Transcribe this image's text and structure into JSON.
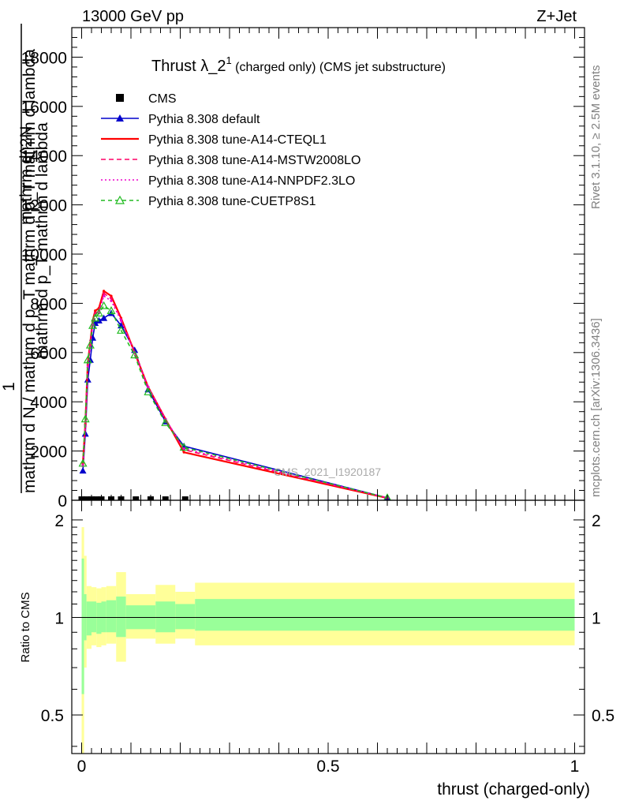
{
  "header": {
    "left": "13000 GeV pp",
    "right": "Z+Jet"
  },
  "plot_title": {
    "main": "Thrust λ_2",
    "sup": "1",
    "small": " (charged only) (CMS jet substructure)"
  },
  "side_labels": {
    "rivet": "Rivet 3.1.10, ≥ 2.5M events",
    "mcplots": "mcplots.cern.ch [arXiv:1306.3436]"
  },
  "watermark": "CMS_2021_I1920187",
  "colors": {
    "cms": "#000000",
    "default": "#0000cc",
    "cteql1": "#ff0000",
    "mstw": "#ff0066",
    "nnpdf": "#ee00cc",
    "cuetp8s1": "#22bb22",
    "band_inner": "#99ff99",
    "band_outer": "#ffff99"
  },
  "chart_data": [
    {
      "type": "line",
      "ylabel_fraction": {
        "numerator": "1",
        "denominator": "mathrm d N / mathrm d p_T mathrm d p_T mathrm d lambda",
        "top_numerator": "mathrm d^2N",
        "top_denominator": "mathrm d p_T mathrm d lambda"
      },
      "xlim": [
        -0.02,
        1.02
      ],
      "ylim": [
        0,
        19200
      ],
      "yticks": [
        {
          "v": 0,
          "label": "0"
        },
        {
          "v": 2000,
          "label": "2000"
        },
        {
          "v": 4000,
          "label": "4000"
        },
        {
          "v": 6000,
          "label": "6000"
        },
        {
          "v": 8000,
          "label": "8000"
        },
        {
          "v": 10000,
          "label": "10000"
        },
        {
          "v": 12000,
          "label": "12000"
        },
        {
          "v": 14000,
          "label": "14000"
        },
        {
          "v": 16000,
          "label": "16000"
        },
        {
          "v": 18000,
          "label": "18000"
        }
      ],
      "series": [
        {
          "name": "CMS",
          "key": "cms",
          "marker": "square",
          "x": [
            0.0,
            0.01,
            0.02,
            0.03,
            0.04,
            0.06,
            0.08,
            0.11,
            0.14,
            0.17,
            0.21
          ],
          "y": [
            30,
            30,
            30,
            30,
            30,
            30,
            30,
            30,
            30,
            30,
            30
          ]
        },
        {
          "name": "Pythia 8.308 default",
          "key": "default",
          "marker": "triangle-filled",
          "dash": "",
          "x": [
            0.0025,
            0.0075,
            0.0125,
            0.0175,
            0.0225,
            0.0275,
            0.035,
            0.045,
            0.06,
            0.08,
            0.1075,
            0.135,
            0.17,
            0.2075,
            0.62
          ],
          "y": [
            1200,
            2700,
            4900,
            5700,
            6600,
            7200,
            7300,
            7400,
            7600,
            7100,
            6100,
            4500,
            3200,
            2200,
            100
          ]
        },
        {
          "name": "Pythia 8.308 tune-A14-CTEQL1",
          "key": "cteql1",
          "marker": "none",
          "dash": "",
          "x": [
            0.0025,
            0.0075,
            0.0125,
            0.0175,
            0.0225,
            0.0275,
            0.035,
            0.045,
            0.06,
            0.08,
            0.1075,
            0.135,
            0.17,
            0.2075,
            0.62
          ],
          "y": [
            1500,
            3100,
            5600,
            6400,
            7300,
            7700,
            7800,
            8500,
            8300,
            7400,
            6000,
            4600,
            3300,
            1950,
            90
          ]
        },
        {
          "name": "Pythia 8.308 tune-A14-MSTW2008LO",
          "key": "mstw",
          "marker": "none",
          "dash": "6,4",
          "x": [
            0.0025,
            0.0075,
            0.0125,
            0.0175,
            0.0225,
            0.0275,
            0.035,
            0.045,
            0.06,
            0.08,
            0.1075,
            0.135,
            0.17,
            0.2075,
            0.62
          ],
          "y": [
            1450,
            3050,
            5500,
            6300,
            7200,
            7600,
            7700,
            8400,
            8200,
            7350,
            6000,
            4600,
            3300,
            2050,
            100
          ]
        },
        {
          "name": "Pythia 8.308 tune-A14-NNPDF2.3LO",
          "key": "nnpdf",
          "marker": "none",
          "dash": "2,3",
          "x": [
            0.0025,
            0.0075,
            0.0125,
            0.0175,
            0.0225,
            0.0275,
            0.035,
            0.045,
            0.06,
            0.08,
            0.1075,
            0.135,
            0.17,
            0.2075,
            0.62
          ],
          "y": [
            1400,
            3000,
            5400,
            6200,
            7100,
            7500,
            7600,
            8300,
            8100,
            7300,
            6000,
            4600,
            3300,
            2100,
            100
          ]
        },
        {
          "name": "Pythia 8.308 tune-CUETP8S1",
          "key": "cuetp8s1",
          "marker": "triangle-open",
          "dash": "5,4",
          "x": [
            0.0025,
            0.0075,
            0.0125,
            0.0175,
            0.0225,
            0.0275,
            0.035,
            0.045,
            0.06,
            0.08,
            0.1075,
            0.135,
            0.17,
            0.2075,
            0.62
          ],
          "y": [
            1500,
            3300,
            5700,
            6300,
            7100,
            7400,
            7600,
            7900,
            7700,
            6900,
            5900,
            4400,
            3150,
            2150,
            100
          ]
        }
      ]
    },
    {
      "type": "area",
      "ylabel": "Ratio to CMS",
      "xlabel": "thrust (charged-only)",
      "xlim": [
        -0.02,
        1.02
      ],
      "ylim": [
        0.38,
        2.3
      ],
      "ylog": true,
      "yticks": [
        {
          "v": 0.5,
          "label": "0.5"
        },
        {
          "v": 1,
          "label": "1"
        },
        {
          "v": 2,
          "label": "2"
        }
      ],
      "xticks": [
        {
          "v": 0,
          "label": "0"
        },
        {
          "v": 0.5,
          "label": "0.5"
        },
        {
          "v": 1,
          "label": "1"
        }
      ],
      "bins": [
        {
          "lo": 0.0,
          "hi": 0.005,
          "outer": [
            0.35,
            1.9
          ],
          "inner": [
            0.58,
            1.52
          ]
        },
        {
          "lo": 0.005,
          "hi": 0.01,
          "outer": [
            0.7,
            1.55
          ],
          "inner": [
            0.85,
            1.18
          ]
        },
        {
          "lo": 0.01,
          "hi": 0.02,
          "outer": [
            0.8,
            1.25
          ],
          "inner": [
            0.88,
            1.12
          ]
        },
        {
          "lo": 0.02,
          "hi": 0.03,
          "outer": [
            0.82,
            1.24
          ],
          "inner": [
            0.9,
            1.12
          ]
        },
        {
          "lo": 0.03,
          "hi": 0.04,
          "outer": [
            0.81,
            1.23
          ],
          "inner": [
            0.89,
            1.11
          ]
        },
        {
          "lo": 0.04,
          "hi": 0.05,
          "outer": [
            0.82,
            1.24
          ],
          "inner": [
            0.9,
            1.12
          ]
        },
        {
          "lo": 0.05,
          "hi": 0.07,
          "outer": [
            0.83,
            1.25
          ],
          "inner": [
            0.9,
            1.13
          ]
        },
        {
          "lo": 0.07,
          "hi": 0.09,
          "outer": [
            0.73,
            1.38
          ],
          "inner": [
            0.87,
            1.16
          ]
        },
        {
          "lo": 0.09,
          "hi": 0.15,
          "outer": [
            0.86,
            1.18
          ],
          "inner": [
            0.92,
            1.09
          ]
        },
        {
          "lo": 0.15,
          "hi": 0.19,
          "outer": [
            0.83,
            1.26
          ],
          "inner": [
            0.9,
            1.12
          ]
        },
        {
          "lo": 0.19,
          "hi": 0.23,
          "outer": [
            0.86,
            1.2
          ],
          "inner": [
            0.92,
            1.1
          ]
        },
        {
          "lo": 0.23,
          "hi": 1.0,
          "outer": [
            0.82,
            1.28
          ],
          "inner": [
            0.91,
            1.14
          ]
        }
      ],
      "reference_line": 1
    }
  ]
}
